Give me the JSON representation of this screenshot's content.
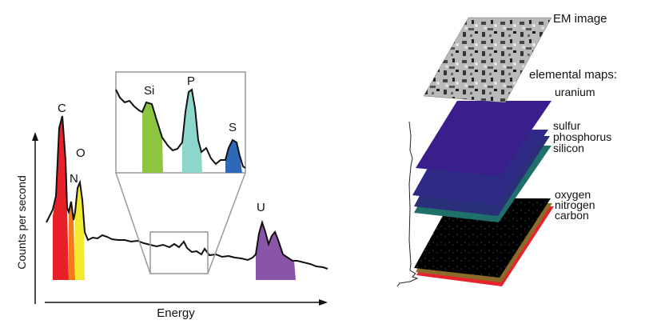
{
  "spectrum": {
    "x_axis_label": "Energy",
    "y_axis_label": "Counts per second",
    "peaks": [
      {
        "label": "C",
        "color": "#e8202a"
      },
      {
        "label": "N",
        "color": "#f07a1e"
      },
      {
        "label": "O",
        "color": "#f2ea2e"
      },
      {
        "label": "U",
        "color": "#8a55a8"
      }
    ],
    "inset_peaks": [
      {
        "label": "Si",
        "color": "#8cc640"
      },
      {
        "label": "P",
        "color": "#8cd6cc"
      },
      {
        "label": "S",
        "color": "#2e68b8"
      }
    ]
  },
  "maps": {
    "em_image_label": "EM image",
    "elemental_maps_heading": "elemental maps:",
    "layers": [
      {
        "name": "uranium",
        "color": "#3a1e8c"
      },
      {
        "name": "sulfur",
        "color": "#2e2a86"
      },
      {
        "name": "phosphorus",
        "color": "#2a2f7a"
      },
      {
        "name": "silicon",
        "color": "#1f6f6a"
      },
      {
        "name": "oxygen",
        "color": "#cfd04c"
      },
      {
        "name": "nitrogen",
        "color": "#8a6b2a"
      },
      {
        "name": "carbon",
        "color": "#e4232b"
      }
    ]
  }
}
